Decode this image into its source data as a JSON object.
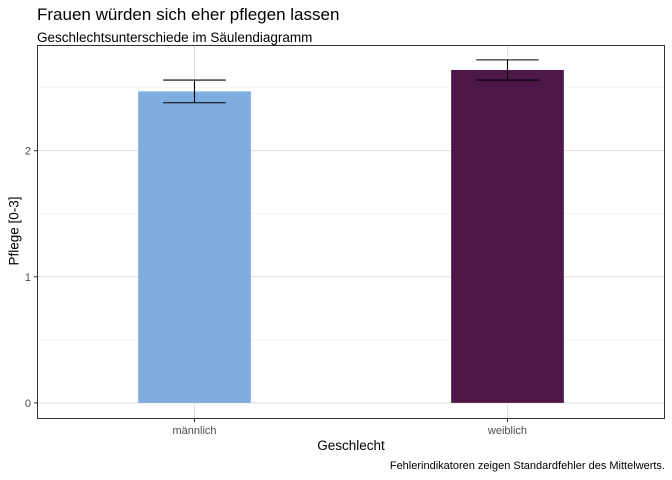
{
  "chart_data": {
    "type": "bar",
    "title": "Frauen würden sich eher pflegen lassen",
    "subtitle": "Geschlechtsunterschiede im Säulendiagramm",
    "xlabel": "Geschlecht",
    "ylabel": "Pflege [0-3]",
    "caption": "Fehlerindikatoren zeigen Standardfehler des Mittelwerts.",
    "categories": [
      "männlich",
      "weiblich"
    ],
    "values": [
      2.47,
      2.64
    ],
    "error_low": [
      2.38,
      2.56
    ],
    "error_high": [
      2.56,
      2.72
    ],
    "colors": [
      "#7faddf",
      "#4d1747"
    ],
    "ylim": [
      -0.12,
      2.83
    ],
    "yticks": [
      0,
      1,
      2
    ],
    "ytick_labels": [
      "0",
      "1",
      "2"
    ],
    "grid": true,
    "legend": "none"
  }
}
